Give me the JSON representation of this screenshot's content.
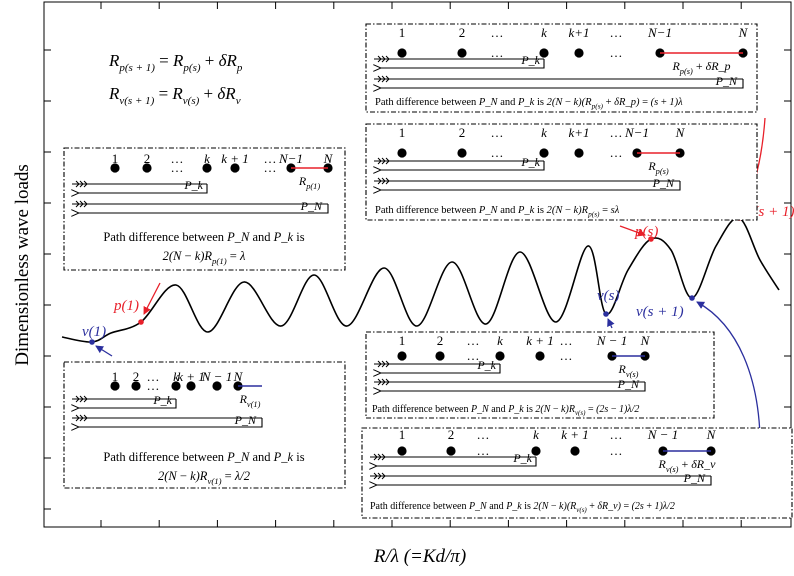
{
  "axes": {
    "xlabel": "R/λ (=Kd/π)",
    "ylabel": "Dimensionless wave loads"
  },
  "equations": {
    "eq1": "R_{p(s+1)} = R_{p(s)} + δR_p",
    "eq2": "R_{v(s+1)} = R_{v(s)} + δR_v"
  },
  "points": {
    "v1": "v(1)",
    "p1": "p(1)",
    "vs": "v(s)",
    "ps": "p(s)",
    "vs1": "v(s + 1)",
    "ps1": "p(s + 1)"
  },
  "boxes": [
    {
      "id": "box-p1",
      "labels": [
        "1",
        "2",
        "…",
        "k",
        "k + 1",
        "…",
        "N−1",
        "N"
      ],
      "segment": "R_{p(1)}",
      "segment_color": "#e8202a",
      "pk": "P_k",
      "pn": "P_N",
      "caption1": "Path difference between P_N and P_k is",
      "caption2": "2(N − k)R_{p(1)} = λ"
    },
    {
      "id": "box-v1",
      "labels": [
        "1",
        "2",
        "…",
        "k",
        "k + 1",
        "N − 1",
        "N"
      ],
      "segment": "R_{v(1)}",
      "segment_color": "#2b2f9e",
      "pk": "P_k",
      "pn": "P_N",
      "caption1": "Path difference between P_N and P_k is",
      "caption2": "2(N − k)R_{v(1)} = λ/2"
    },
    {
      "id": "box-ps1",
      "labels": [
        "1",
        "2",
        "…",
        "k",
        "k+1",
        "…",
        "N−1",
        "N"
      ],
      "segment": "R_{p(s)} + δR_p",
      "segment_color": "#e8202a",
      "pk": "P_k",
      "pn": "P_N",
      "caption1": "Path difference between P_N and P_k is 2(N − k)(R_{p(s)} + δR_p) = (s + 1)λ"
    },
    {
      "id": "box-ps",
      "labels": [
        "1",
        "2",
        "…",
        "k",
        "k+1",
        "…",
        "N−1",
        "N"
      ],
      "segment": "R_{p(s)}",
      "segment_color": "#e8202a",
      "pk": "P_k",
      "pn": "P_N",
      "caption1": "Path difference between P_N and P_k is 2(N − k)R_{p(s)} = sλ"
    },
    {
      "id": "box-vs",
      "labels": [
        "1",
        "2",
        "…",
        "k",
        "k + 1",
        "…",
        "N − 1",
        "N"
      ],
      "segment": "R_{v(s)}",
      "segment_color": "#2b2f9e",
      "pk": "P_k",
      "pn": "P_N",
      "caption1": "Path difference between P_N and P_k is 2(N − k)R_{v(s)} = (2s − 1)λ/2"
    },
    {
      "id": "box-vs1",
      "labels": [
        "1",
        "2",
        "…",
        "k",
        "k + 1",
        "…",
        "N − 1",
        "N"
      ],
      "segment": "R_{v(s)} + δR_v",
      "segment_color": "#2b2f9e",
      "pk": "P_k",
      "pn": "P_N",
      "caption1": "Path difference between P_N and P_k is 2(N − k)(R_{v(s)} + δR_v) = (2s + 1)λ/2"
    }
  ],
  "colors": {
    "peak": "#e8202a",
    "valley": "#2b2f9e",
    "curve": "#000000"
  }
}
